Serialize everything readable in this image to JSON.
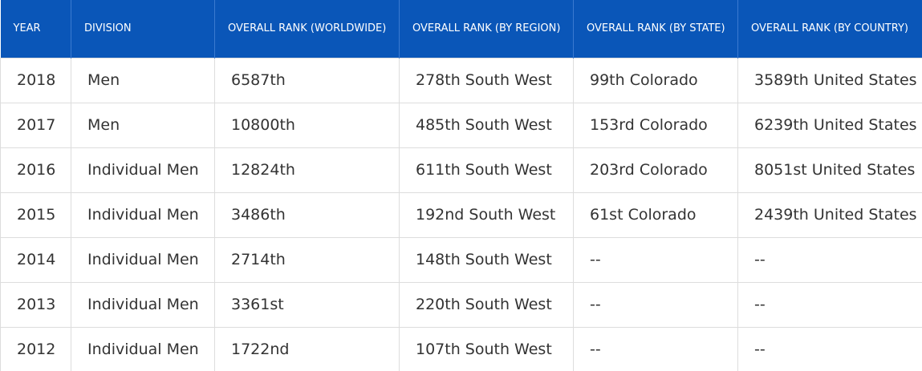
{
  "table": {
    "headers": [
      "YEAR",
      "DIVISION",
      "OVERALL RANK (WORLDWIDE)",
      "OVERALL RANK (BY REGION)",
      "OVERALL RANK (BY STATE)",
      "OVERALL RANK (BY COUNTRY)"
    ],
    "rows": [
      [
        "2018",
        "Men",
        "6587th",
        "278th South West",
        "99th Colorado",
        "3589th United States"
      ],
      [
        "2017",
        "Men",
        "10800th",
        "485th South West",
        "153rd Colorado",
        "6239th United States"
      ],
      [
        "2016",
        "Individual Men",
        "12824th",
        "611th South West",
        "203rd Colorado",
        "8051st United States"
      ],
      [
        "2015",
        "Individual Men",
        "3486th",
        "192nd South West",
        "61st Colorado",
        "2439th United States"
      ],
      [
        "2014",
        "Individual Men",
        "2714th",
        "148th South West",
        "--",
        "--"
      ],
      [
        "2013",
        "Individual Men",
        "3361st",
        "220th South West",
        "--",
        "--"
      ],
      [
        "2012",
        "Individual Men",
        "1722nd",
        "107th South West",
        "--",
        "--"
      ]
    ]
  }
}
